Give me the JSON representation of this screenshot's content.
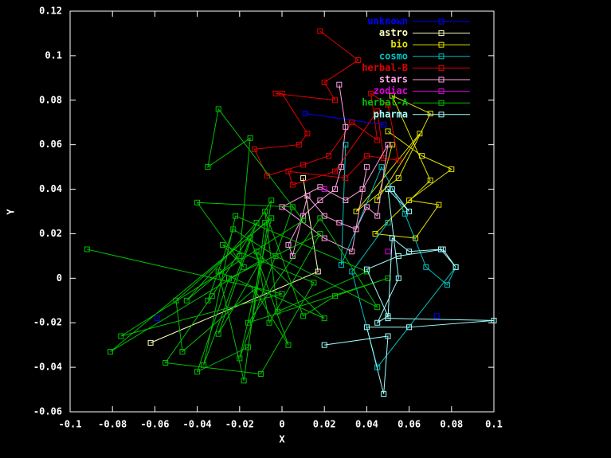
{
  "chart_data": {
    "type": "line",
    "xlabel": "X",
    "ylabel": "Y",
    "xlim": [
      -0.1,
      0.1
    ],
    "xticks": [
      -0.1,
      -0.08,
      -0.06,
      -0.04,
      -0.02,
      0,
      0.02,
      0.04,
      0.06,
      0.08,
      0.1
    ],
    "ylim": [
      -0.06,
      0.12
    ],
    "yticks": [
      -0.06,
      -0.04,
      -0.02,
      0,
      0.02,
      0.04,
      0.06,
      0.08,
      0.1,
      0.12
    ],
    "legend": "upper right",
    "series": [
      {
        "name": "unknown",
        "color": "#0000ff",
        "x": [
          -0.059,
          -0.059,
          0.011,
          0.048,
          0.048,
          0.073
        ],
        "values": [
          -0.018,
          null,
          0.074,
          0.069,
          null,
          -0.017
        ]
      },
      {
        "name": "astro",
        "color": "#ffffc0",
        "x": [
          0.01,
          0.017,
          -0.062
        ],
        "values": [
          0.045,
          0.003,
          -0.029
        ]
      },
      {
        "name": "bio",
        "color": "#e0e000",
        "x": [
          0.05,
          0.066,
          0.08,
          0.06,
          0.074,
          0.063,
          0.044,
          0.07,
          0.052,
          0.07,
          0.055,
          0.035,
          0.065,
          0.045,
          0.052
        ],
        "values": [
          0.066,
          0.055,
          0.049,
          0.035,
          0.033,
          0.018,
          0.02,
          0.044,
          0.082,
          0.074,
          0.045,
          0.03,
          0.065,
          0.035,
          0.06
        ]
      },
      {
        "name": "cosmo",
        "color": "#00c0c0",
        "x": [
          0.03,
          0.028,
          0.047,
          0.058,
          0.068,
          0.078,
          0.082,
          0.045,
          0.033,
          0.05
        ],
        "values": [
          0.06,
          0.006,
          0.05,
          0.029,
          0.005,
          -0.003,
          0.005,
          -0.04,
          0.003,
          0.025
        ]
      },
      {
        "name": "herbal-B",
        "color": "#e00000",
        "x": [
          0.018,
          0.036,
          0.02,
          0.025,
          -0.003,
          0.0,
          0.012,
          0.008,
          -0.013,
          -0.007,
          0.01,
          0.022,
          0.033,
          0.045,
          0.042,
          0.05,
          0.055,
          0.04,
          0.03,
          0.003,
          0.005,
          0.025,
          0.045,
          0.048
        ],
        "values": [
          0.111,
          0.098,
          0.088,
          0.08,
          0.083,
          0.083,
          0.065,
          0.06,
          0.058,
          0.046,
          0.051,
          0.055,
          0.07,
          0.062,
          0.083,
          0.078,
          0.053,
          0.055,
          0.045,
          0.048,
          0.042,
          0.048,
          0.075,
          0.054
        ]
      },
      {
        "name": "stars",
        "color": "#ffa0e0",
        "x": [
          0.027,
          0.03,
          0.028,
          0.025,
          0.018,
          0.01,
          0.003,
          0.005,
          0.012,
          0.02,
          0.027,
          0.035,
          0.04,
          0.045,
          0.05,
          0.038,
          0.03,
          0.018,
          0.0,
          0.02,
          0.033,
          0.04
        ],
        "values": [
          0.087,
          0.068,
          0.05,
          0.04,
          0.035,
          0.028,
          0.015,
          0.01,
          0.037,
          0.028,
          0.025,
          0.022,
          0.032,
          0.028,
          0.06,
          0.04,
          0.035,
          0.041,
          0.032,
          0.018,
          0.012,
          0.05
        ]
      },
      {
        "name": "zodiac",
        "color": "#e000e0",
        "x": [
          0.05,
          0.05,
          0.02
        ],
        "values": [
          0.012,
          null,
          0.04
        ]
      },
      {
        "name": "herbal-A",
        "color": "#00c000",
        "x": [
          -0.092,
          0.0,
          -0.076,
          0.01,
          -0.03,
          -0.035,
          -0.015,
          -0.02,
          -0.045,
          -0.012,
          -0.03,
          -0.01,
          -0.081,
          -0.005,
          -0.02,
          0.005,
          -0.04,
          -0.018,
          -0.028,
          0.015,
          -0.01,
          -0.055,
          -0.033,
          -0.005,
          -0.016,
          -0.04,
          -0.025,
          0.018,
          -0.006,
          -0.012,
          0.02,
          -0.03,
          -0.018,
          -0.008,
          -0.05,
          -0.047,
          -0.013,
          0.003,
          -0.015,
          -0.037,
          -0.022,
          0.04,
          -0.002,
          -0.008,
          0.01,
          0.025,
          0.05,
          -0.016,
          0.018,
          0.045,
          -0.003,
          -0.023,
          -0.035
        ],
        "values": [
          0.013,
          -0.007,
          -0.026,
          0.026,
          0.076,
          0.05,
          0.063,
          0.01,
          -0.01,
          0.025,
          -0.025,
          0.008,
          -0.033,
          0.027,
          -0.036,
          0.032,
          0.034,
          0.005,
          0.015,
          -0.002,
          -0.043,
          -0.038,
          -0.008,
          0.035,
          -0.031,
          -0.042,
          0.0,
          0.02,
          -0.02,
          0.012,
          -0.018,
          0.003,
          -0.046,
          0.025,
          -0.01,
          -0.033,
          -0.005,
          -0.03,
          0.018,
          -0.039,
          0.028,
          0.003,
          -0.015,
          0.03,
          -0.017,
          -0.008,
          0.0,
          -0.02,
          0.027,
          -0.013,
          0.01,
          0.022,
          -0.01
        ]
      },
      {
        "name": "pharma",
        "color": "#a0ffff",
        "x": [
          0.02,
          0.05,
          0.048,
          0.04,
          0.06,
          0.1,
          0.05,
          0.052,
          0.06,
          0.075,
          0.082,
          0.076,
          0.055,
          0.04,
          0.05,
          0.045,
          0.055,
          0.05,
          0.06,
          0.052
        ],
        "values": [
          -0.03,
          -0.026,
          -0.052,
          -0.022,
          -0.022,
          -0.019,
          -0.018,
          0.018,
          0.012,
          0.013,
          0.005,
          0.013,
          0.01,
          0.004,
          -0.017,
          -0.02,
          0.0,
          0.04,
          0.03,
          0.04
        ]
      }
    ]
  }
}
